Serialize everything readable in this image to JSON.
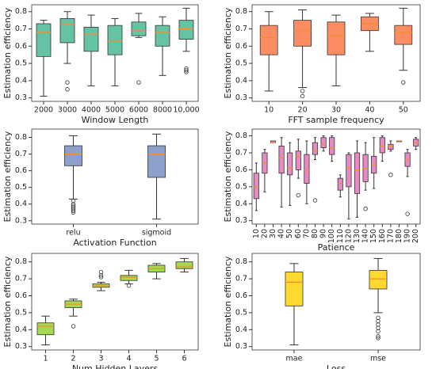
{
  "chart_data": [
    {
      "type": "box",
      "xlabel": "Window Length",
      "ylabel": "Estimation efficiency",
      "color": "#66c2a5",
      "median_color": "#f28e2b",
      "categories": [
        "2000",
        "3000",
        "4000",
        "5000",
        "6000",
        "8000",
        "10,000"
      ],
      "ylim": [
        0.28,
        0.84
      ],
      "yticks": [
        0.3,
        0.4,
        0.5,
        0.6,
        0.7,
        0.8
      ],
      "boxes": [
        {
          "whislo": 0.31,
          "q1": 0.54,
          "med": 0.68,
          "q3": 0.73,
          "whishi": 0.75,
          "fliers": []
        },
        {
          "whislo": 0.5,
          "q1": 0.62,
          "med": 0.73,
          "q3": 0.76,
          "whishi": 0.8,
          "fliers": [
            0.39,
            0.35
          ]
        },
        {
          "whislo": 0.37,
          "q1": 0.57,
          "med": 0.67,
          "q3": 0.71,
          "whishi": 0.78,
          "fliers": []
        },
        {
          "whislo": 0.37,
          "q1": 0.55,
          "med": 0.63,
          "q3": 0.72,
          "whishi": 0.76,
          "fliers": []
        },
        {
          "whislo": 0.65,
          "q1": 0.66,
          "med": 0.69,
          "q3": 0.74,
          "whishi": 0.79,
          "fliers": [
            0.39
          ]
        },
        {
          "whislo": 0.43,
          "q1": 0.6,
          "med": 0.68,
          "q3": 0.72,
          "whishi": 0.77,
          "fliers": []
        },
        {
          "whislo": 0.57,
          "q1": 0.64,
          "med": 0.7,
          "q3": 0.75,
          "whishi": 0.82,
          "fliers": [
            0.47,
            0.46,
            0.45
          ]
        }
      ]
    },
    {
      "type": "box",
      "xlabel": "FFT sample frequency",
      "ylabel": "Estimation efficiency",
      "color": "#fc8d62",
      "median_color": "#f28e2b",
      "categories": [
        "10",
        "20",
        "30",
        "40",
        "50"
      ],
      "ylim": [
        0.28,
        0.84
      ],
      "yticks": [
        0.3,
        0.4,
        0.5,
        0.6,
        0.7,
        0.8
      ],
      "boxes": [
        {
          "whislo": 0.34,
          "q1": 0.55,
          "med": 0.65,
          "q3": 0.72,
          "whishi": 0.8,
          "fliers": []
        },
        {
          "whislo": 0.36,
          "q1": 0.6,
          "med": 0.69,
          "q3": 0.75,
          "whishi": 0.81,
          "fliers": [
            0.34,
            0.31
          ]
        },
        {
          "whislo": 0.37,
          "q1": 0.55,
          "med": 0.66,
          "q3": 0.74,
          "whishi": 0.78,
          "fliers": []
        },
        {
          "whislo": 0.57,
          "q1": 0.69,
          "med": 0.73,
          "q3": 0.77,
          "whishi": 0.79,
          "fliers": []
        },
        {
          "whislo": 0.46,
          "q1": 0.61,
          "med": 0.68,
          "q3": 0.72,
          "whishi": 0.82,
          "fliers": [
            0.39
          ]
        }
      ]
    },
    {
      "type": "box",
      "xlabel": "Activation Function",
      "ylabel": "Estimation efficiency",
      "color": "#8da0cb",
      "median_color": "#f28e2b",
      "categories": [
        "relu",
        "sigmoid"
      ],
      "ylim": [
        0.28,
        0.85
      ],
      "yticks": [
        0.3,
        0.4,
        0.5,
        0.6,
        0.7,
        0.8
      ],
      "boxes": [
        {
          "whislo": 0.43,
          "q1": 0.63,
          "med": 0.7,
          "q3": 0.75,
          "whishi": 0.81,
          "fliers": [
            0.42,
            0.4,
            0.39,
            0.38,
            0.37,
            0.36,
            0.35
          ]
        },
        {
          "whislo": 0.31,
          "q1": 0.56,
          "med": 0.7,
          "q3": 0.75,
          "whishi": 0.82,
          "fliers": []
        }
      ]
    },
    {
      "type": "box",
      "xlabel": "Patience",
      "ylabel": "Estimation efficiency",
      "color": "#e78ac3",
      "median_color": "#f28e2b",
      "rotate_labels": true,
      "categories": [
        "10",
        "20",
        "30",
        "40",
        "50",
        "60",
        "70",
        "80",
        "90",
        "100",
        "110",
        "120",
        "130",
        "140",
        "150",
        "160",
        "170",
        "180",
        "190",
        "200"
      ],
      "ylim": [
        0.28,
        0.84
      ],
      "yticks": [
        0.3,
        0.4,
        0.5,
        0.6,
        0.7,
        0.8
      ],
      "boxes": [
        {
          "whislo": 0.36,
          "q1": 0.43,
          "med": 0.5,
          "q3": 0.58,
          "whishi": 0.64,
          "fliers": []
        },
        {
          "whislo": 0.47,
          "q1": 0.58,
          "med": 0.64,
          "q3": 0.7,
          "whishi": 0.72,
          "fliers": []
        },
        {
          "whislo": 0.76,
          "q1": 0.76,
          "med": 0.76,
          "q3": 0.77,
          "whishi": 0.77,
          "fliers": []
        },
        {
          "whislo": 0.38,
          "q1": 0.58,
          "med": 0.67,
          "q3": 0.74,
          "whishi": 0.79,
          "fliers": []
        },
        {
          "whislo": 0.39,
          "q1": 0.57,
          "med": 0.61,
          "q3": 0.7,
          "whishi": 0.76,
          "fliers": []
        },
        {
          "whislo": 0.55,
          "q1": 0.6,
          "med": 0.68,
          "q3": 0.71,
          "whishi": 0.78,
          "fliers": [
            0.45
          ]
        },
        {
          "whislo": 0.4,
          "q1": 0.52,
          "med": 0.6,
          "q3": 0.69,
          "whishi": 0.77,
          "fliers": []
        },
        {
          "whislo": 0.66,
          "q1": 0.69,
          "med": 0.71,
          "q3": 0.76,
          "whishi": 0.79,
          "fliers": [
            0.42
          ]
        },
        {
          "whislo": 0.71,
          "q1": 0.73,
          "med": 0.75,
          "q3": 0.79,
          "whishi": 0.8,
          "fliers": []
        },
        {
          "whislo": 0.65,
          "q1": 0.69,
          "med": 0.73,
          "q3": 0.79,
          "whishi": 0.8,
          "fliers": []
        },
        {
          "whislo": 0.44,
          "q1": 0.48,
          "med": 0.52,
          "q3": 0.55,
          "whishi": 0.57,
          "fliers": []
        },
        {
          "whislo": 0.31,
          "q1": 0.5,
          "med": 0.61,
          "q3": 0.69,
          "whishi": 0.7,
          "fliers": []
        },
        {
          "whislo": 0.32,
          "q1": 0.46,
          "med": 0.6,
          "q3": 0.7,
          "whishi": 0.77,
          "fliers": []
        },
        {
          "whislo": 0.48,
          "q1": 0.53,
          "med": 0.61,
          "q3": 0.69,
          "whishi": 0.76,
          "fliers": [
            0.37
          ]
        },
        {
          "whislo": 0.49,
          "q1": 0.58,
          "med": 0.63,
          "q3": 0.68,
          "whishi": 0.79,
          "fliers": []
        },
        {
          "whislo": 0.65,
          "q1": 0.7,
          "med": 0.74,
          "q3": 0.79,
          "whishi": 0.8,
          "fliers": []
        },
        {
          "whislo": 0.71,
          "q1": 0.72,
          "med": 0.74,
          "q3": 0.75,
          "whishi": 0.77,
          "fliers": [
            0.57
          ]
        },
        {
          "whislo": 0.77,
          "q1": 0.77,
          "med": 0.77,
          "q3": 0.77,
          "whishi": 0.77,
          "fliers": []
        },
        {
          "whislo": 0.56,
          "q1": 0.62,
          "med": 0.66,
          "q3": 0.7,
          "whishi": 0.72,
          "fliers": [
            0.34
          ]
        },
        {
          "whislo": 0.72,
          "q1": 0.74,
          "med": 0.76,
          "q3": 0.78,
          "whishi": 0.79,
          "fliers": []
        }
      ]
    },
    {
      "type": "box",
      "xlabel": "Num Hidden Layers",
      "ylabel": "Estimation efficiency",
      "color": "#a6d854",
      "median_color": "#f28e2b",
      "categories": [
        "1",
        "2",
        "3",
        "4",
        "5",
        "6"
      ],
      "ylim": [
        0.28,
        0.85
      ],
      "yticks": [
        0.3,
        0.4,
        0.5,
        0.6,
        0.7,
        0.8
      ],
      "boxes": [
        {
          "whislo": 0.31,
          "q1": 0.37,
          "med": 0.42,
          "q3": 0.44,
          "whishi": 0.48,
          "fliers": []
        },
        {
          "whislo": 0.48,
          "q1": 0.53,
          "med": 0.55,
          "q3": 0.57,
          "whishi": 0.58,
          "fliers": [
            0.42
          ]
        },
        {
          "whislo": 0.63,
          "q1": 0.65,
          "med": 0.66,
          "q3": 0.67,
          "whishi": 0.68,
          "fliers": [
            0.71,
            0.72,
            0.74
          ]
        },
        {
          "whislo": 0.67,
          "q1": 0.69,
          "med": 0.71,
          "q3": 0.72,
          "whishi": 0.75,
          "fliers": [
            0.66
          ]
        },
        {
          "whislo": 0.7,
          "q1": 0.74,
          "med": 0.76,
          "q3": 0.78,
          "whishi": 0.79,
          "fliers": []
        },
        {
          "whislo": 0.74,
          "q1": 0.76,
          "med": 0.77,
          "q3": 0.8,
          "whishi": 0.82,
          "fliers": []
        }
      ]
    },
    {
      "type": "box",
      "xlabel": "Loss",
      "ylabel": "Estimation efficiency",
      "color": "#ffd92f",
      "median_color": "#f28e2b",
      "categories": [
        "mae",
        "mse"
      ],
      "ylim": [
        0.28,
        0.85
      ],
      "yticks": [
        0.3,
        0.4,
        0.5,
        0.6,
        0.7,
        0.8
      ],
      "boxes": [
        {
          "whislo": 0.31,
          "q1": 0.54,
          "med": 0.68,
          "q3": 0.74,
          "whishi": 0.79,
          "fliers": []
        },
        {
          "whislo": 0.5,
          "q1": 0.64,
          "med": 0.7,
          "q3": 0.75,
          "whishi": 0.82,
          "fliers": [
            0.47,
            0.45,
            0.43,
            0.41,
            0.39,
            0.36,
            0.35
          ]
        }
      ]
    }
  ]
}
